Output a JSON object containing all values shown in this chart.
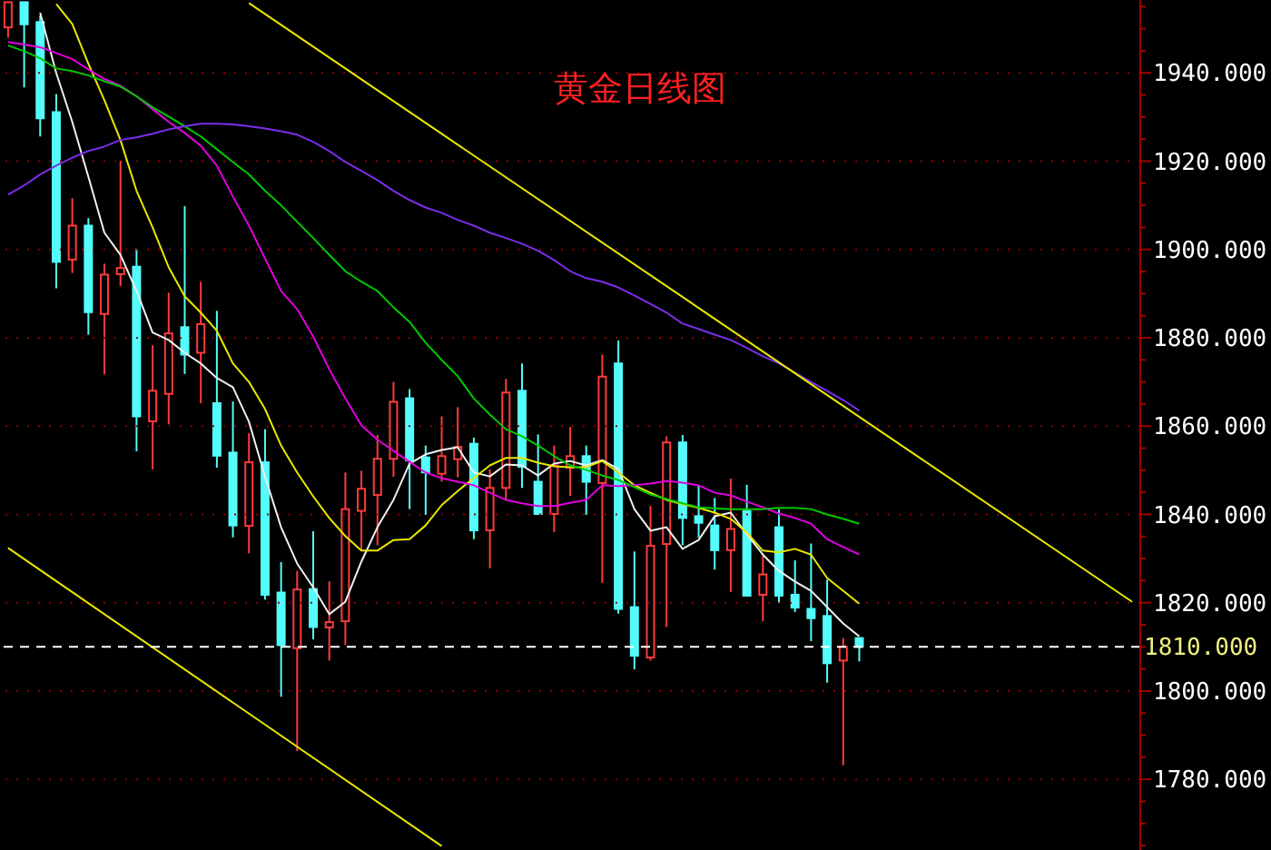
{
  "chart_data": {
    "type": "candlestick",
    "title": "黄金日线图",
    "categories": [
      null,
      null,
      null,
      null,
      null,
      null,
      null,
      null,
      null,
      null,
      null,
      null,
      null,
      null,
      null,
      null,
      null,
      null,
      null,
      null,
      null,
      null,
      null,
      null,
      null,
      null,
      null,
      null,
      null,
      null,
      null,
      null,
      null,
      null,
      null,
      null,
      null,
      null,
      null,
      null,
      null,
      null,
      null,
      null,
      null,
      null,
      null,
      null,
      null,
      null,
      null,
      null,
      null,
      null,
      null,
      null,
      null,
      null,
      null,
      null,
      null,
      null,
      null,
      null,
      null,
      null,
      null,
      null,
      null,
      null,
      null
    ],
    "series": [
      {
        "ohlc": [
          [
            1950.3,
            1956.0,
            1948.0,
            1956.0
          ],
          [
            1956.0,
            1956.0,
            1936.7,
            1951.0
          ],
          [
            1951.5,
            1953.0,
            1925.6,
            1929.7
          ],
          [
            1931.1,
            1935.2,
            1891.2,
            1897.2
          ],
          [
            1897.7,
            1911.6,
            1894.7,
            1905.4
          ],
          [
            1905.4,
            1907.1,
            1880.7,
            1885.8
          ],
          [
            1885.4,
            1896.8,
            1871.7,
            1894.3
          ],
          [
            1894.4,
            1920.1,
            1891.7,
            1895.8
          ],
          [
            1896.1,
            1900.2,
            1854.3,
            1862.2
          ],
          [
            1861.1,
            1878.3,
            1850.2,
            1868.0
          ],
          [
            1867.3,
            1890.2,
            1860.4,
            1881.0
          ],
          [
            1882.4,
            1909.8,
            1871.8,
            1876.2
          ],
          [
            1876.6,
            1892.7,
            1865.2,
            1883.1
          ],
          [
            1865.2,
            1886.1,
            1850.6,
            1853.3
          ],
          [
            1854.0,
            1865.6,
            1834.8,
            1837.5
          ],
          [
            1837.4,
            1858.4,
            1831.2,
            1851.8
          ],
          [
            1851.8,
            1859.3,
            1820.7,
            1821.8
          ],
          [
            1822.3,
            1829.2,
            1798.7,
            1810.4
          ],
          [
            1809.7,
            1827.2,
            1786.4,
            1823.0
          ],
          [
            1823.1,
            1836.2,
            1811.7,
            1814.5
          ],
          [
            1814.4,
            1824.8,
            1806.9,
            1815.6
          ],
          [
            1815.8,
            1849.5,
            1810.4,
            1841.2
          ],
          [
            1840.8,
            1849.9,
            1831.9,
            1845.8
          ],
          [
            1844.4,
            1858.0,
            1833.0,
            1852.6
          ],
          [
            1852.6,
            1870.0,
            1848.5,
            1865.5
          ],
          [
            1866.3,
            1868.4,
            1841.2,
            1852.2
          ],
          [
            1852.9,
            1855.6,
            1839.9,
            1849.5
          ],
          [
            1849.2,
            1862.2,
            1847.4,
            1853.2
          ],
          [
            1852.5,
            1864.3,
            1848.4,
            1855.3
          ],
          [
            1856.0,
            1857.4,
            1834.4,
            1836.4
          ],
          [
            1836.4,
            1850.2,
            1827.8,
            1846.0
          ],
          [
            1846.0,
            1870.7,
            1843.3,
            1867.6
          ],
          [
            1868.0,
            1874.2,
            1846.0,
            1850.8
          ],
          [
            1847.4,
            1858.1,
            1840.1,
            1840.1
          ],
          [
            1840.1,
            1855.6,
            1836.0,
            1851.1
          ],
          [
            1850.6,
            1859.8,
            1844.2,
            1853.2
          ],
          [
            1853.2,
            1855.6,
            1839.9,
            1847.4
          ],
          [
            1847.1,
            1876.2,
            1824.5,
            1871.2
          ],
          [
            1874.2,
            1879.4,
            1817.5,
            1818.6
          ],
          [
            1819.0,
            1831.6,
            1804.9,
            1808.0
          ],
          [
            1807.6,
            1841.9,
            1806.9,
            1832.9
          ],
          [
            1833.3,
            1857.7,
            1814.5,
            1856.3
          ],
          [
            1856.3,
            1858.0,
            1833.0,
            1839.2
          ],
          [
            1839.6,
            1846.5,
            1834.7,
            1838.1
          ],
          [
            1837.5,
            1843.7,
            1827.5,
            1831.9
          ],
          [
            1831.9,
            1848.1,
            1822.4,
            1836.7
          ],
          [
            1840.8,
            1846.7,
            1821.6,
            1821.6
          ],
          [
            1821.8,
            1830.9,
            1815.8,
            1826.4
          ],
          [
            1837.1,
            1841.2,
            1820.0,
            1821.6
          ],
          [
            1821.8,
            1829.6,
            1817.9,
            1818.9
          ],
          [
            1818.6,
            1833.4,
            1811.3,
            1816.5
          ],
          [
            1817.0,
            1825.2,
            1801.9,
            1806.3
          ],
          [
            1806.9,
            1812.0,
            1783.2,
            1810.0
          ],
          [
            1812.0,
            1812.0,
            1806.7,
            1810.0
          ],
          null,
          null,
          null,
          null,
          null,
          null,
          null,
          null,
          null,
          null,
          null,
          null,
          null,
          null,
          null,
          null,
          null
        ],
        "colors": [
          "#ff3b3b",
          "#54fcfc",
          "#54fcfc",
          "#54fcfc",
          "#ff3b3b",
          "#54fcfc",
          "#ff3b3b",
          "#ff3b3b",
          "#54fcfc",
          "#ff3b3b",
          "#ff3b3b",
          "#54fcfc",
          "#ff3b3b",
          "#54fcfc",
          "#54fcfc",
          "#ff3b3b",
          "#54fcfc",
          "#54fcfc",
          "#ff3b3b",
          "#54fcfc",
          "#ff3b3b",
          "#ff3b3b",
          "#ff3b3b",
          "#ff3b3b",
          "#ff3b3b",
          "#54fcfc",
          "#54fcfc",
          "#ff3b3b",
          "#ff3b3b",
          "#54fcfc",
          "#ff3b3b",
          "#ff3b3b",
          "#54fcfc",
          "#54fcfc",
          "#ff3b3b",
          "#ff3b3b",
          "#54fcfc",
          "#ff3b3b",
          "#54fcfc",
          "#54fcfc",
          "#ff3b3b",
          "#ff3b3b",
          "#54fcfc",
          "#54fcfc",
          "#54fcfc",
          "#ff3b3b",
          "#54fcfc",
          "#ff3b3b",
          "#54fcfc",
          "#54fcfc",
          "#54fcfc",
          "#54fcfc",
          "#ff3b3b",
          "#54fcfc",
          null,
          null,
          null,
          null,
          null,
          null,
          null,
          null,
          null,
          null,
          null,
          null,
          null,
          null,
          null,
          null,
          null
        ]
      },
      {
        "type": "line",
        "color": "#f0f0f0",
        "values": [
          null,
          null,
          1953.6,
          1940.0,
          1928.9,
          1916.5,
          1903.8,
          1898.8,
          1890.6,
          1881.2,
          1879.5,
          1876.6,
          1874.2,
          1870.9,
          1868.8,
          1861.0,
          1848.6,
          1837.1,
          1828.9,
          1823.5,
          1817.4,
          1820.2,
          1829.3,
          1837.1,
          1843.3,
          1851.5,
          1853.6,
          1854.6,
          1855.2,
          1849.5,
          1848.6,
          1851.3,
          1851.1,
          1848.8,
          1851.5,
          1852.1,
          1851.1,
          1852.3,
          1850.3,
          1841.2,
          1836.3,
          1837.1,
          1832.2,
          1834.2,
          1839.6,
          1840.4,
          1835.5,
          1830.9,
          1827.2,
          1824.8,
          1822.7,
          1819.0,
          1815.3,
          1812.4,
          null,
          null,
          null,
          null,
          null,
          null,
          null,
          null,
          null,
          null,
          null,
          null,
          null,
          null,
          null,
          null,
          null
        ]
      },
      {
        "type": "line",
        "color": "#e8e800",
        "values": [
          null,
          null,
          null,
          1955.6,
          1951.1,
          1942.1,
          1933.8,
          1924.8,
          1913.3,
          1905.0,
          1896.0,
          1889.4,
          1885.7,
          1881.6,
          1874.2,
          1870.0,
          1863.9,
          1855.6,
          1849.5,
          1844.1,
          1839.2,
          1835.1,
          1831.8,
          1831.8,
          1834.2,
          1834.4,
          1837.5,
          1842.1,
          1845.3,
          1848.2,
          1851.1,
          1852.8,
          1852.8,
          1851.7,
          1850.9,
          1850.7,
          1850.7,
          1852.1,
          1849.5,
          1846.6,
          1844.9,
          1843.3,
          1842.3,
          1841.5,
          1840.4,
          1839.0,
          1835.9,
          1831.8,
          1831.4,
          1832.2,
          1830.9,
          1825.6,
          1822.7,
          1819.8,
          null,
          null,
          null,
          null,
          null,
          null,
          null,
          null,
          null,
          null,
          null,
          null,
          null,
          null,
          null,
          null,
          null
        ]
      },
      {
        "type": "line",
        "color": "#e000e0",
        "values": [
          1947.0,
          1946.4,
          1945.8,
          1944.5,
          1943.1,
          1940.8,
          1938.6,
          1937.1,
          1934.7,
          1931.8,
          1928.9,
          1926.4,
          1923.5,
          1919.0,
          1912.0,
          1905.4,
          1898.0,
          1890.6,
          1886.5,
          1880.3,
          1872.9,
          1866.3,
          1860.2,
          1856.9,
          1854.4,
          1851.9,
          1849.5,
          1848.2,
          1847.4,
          1846.6,
          1844.9,
          1843.3,
          1842.5,
          1841.9,
          1841.9,
          1842.6,
          1843.3,
          1846.6,
          1846.4,
          1846.6,
          1847.0,
          1847.6,
          1847.2,
          1846.6,
          1844.9,
          1844.3,
          1842.9,
          1841.6,
          1840.2,
          1839.2,
          1837.9,
          1834.4,
          1832.6,
          1830.9,
          null,
          null,
          null,
          null,
          null,
          null,
          null,
          null,
          null,
          null,
          null,
          null,
          null,
          null,
          null,
          null,
          null
        ]
      },
      {
        "type": "line",
        "color": "#00c800",
        "values": [
          1946.2,
          1944.9,
          1943.3,
          1941.0,
          1940.4,
          1939.4,
          1938.1,
          1936.9,
          1934.7,
          1932.2,
          1930.1,
          1927.9,
          1925.6,
          1922.7,
          1919.8,
          1917.0,
          1913.3,
          1910.0,
          1906.3,
          1902.6,
          1898.8,
          1895.1,
          1892.7,
          1890.6,
          1886.9,
          1883.6,
          1878.9,
          1875.0,
          1871.3,
          1866.3,
          1862.6,
          1859.3,
          1857.7,
          1855.6,
          1853.2,
          1851.1,
          1850.1,
          1848.8,
          1847.8,
          1846.2,
          1844.5,
          1843.5,
          1842.5,
          1841.6,
          1841.4,
          1841.2,
          1841.2,
          1841.2,
          1841.5,
          1841.5,
          1841.2,
          1840.0,
          1839.0,
          1837.9,
          null,
          null,
          null,
          null,
          null,
          null,
          null,
          null,
          null,
          null,
          null,
          null,
          null,
          null,
          null,
          null,
          null
        ]
      },
      {
        "type": "line",
        "color": "#7a2ee8",
        "values": [
          1912.4,
          1914.5,
          1917.0,
          1919.0,
          1920.8,
          1922.3,
          1923.3,
          1924.8,
          1925.4,
          1926.2,
          1927.2,
          1927.9,
          1928.5,
          1928.5,
          1928.3,
          1927.9,
          1927.4,
          1926.8,
          1926.0,
          1924.4,
          1922.3,
          1919.8,
          1917.8,
          1915.7,
          1913.3,
          1911.2,
          1909.5,
          1908.3,
          1906.7,
          1905.4,
          1903.8,
          1902.6,
          1901.3,
          1899.7,
          1897.6,
          1895.1,
          1893.5,
          1892.7,
          1891.4,
          1889.6,
          1887.7,
          1885.7,
          1883.2,
          1882.0,
          1880.7,
          1879.5,
          1877.7,
          1875.8,
          1874.2,
          1872.1,
          1870.0,
          1868.0,
          1865.9,
          1863.5,
          null,
          null,
          null,
          null,
          null,
          null,
          null,
          null,
          null,
          null,
          null,
          null,
          null,
          null,
          null,
          null,
          null
        ]
      },
      {
        "type": "line",
        "color": "#e8e800",
        "values": [
          null,
          null,
          null,
          null,
          null,
          null,
          null,
          null,
          null,
          null,
          null,
          null,
          null,
          null,
          null,
          1955.8,
          null,
          null,
          null,
          null,
          null,
          null,
          null,
          null,
          null,
          null,
          null,
          null,
          null,
          null,
          null,
          null,
          null,
          null,
          null,
          null,
          null,
          null,
          null,
          null,
          null,
          null,
          null,
          null,
          null,
          null,
          null,
          null,
          null,
          null,
          null,
          null,
          null,
          null,
          null,
          null,
          null,
          null,
          null,
          null,
          null,
          null,
          null,
          null,
          null,
          null,
          null,
          null,
          null,
          null,
          1820.2
        ]
      },
      {
        "type": "line",
        "color": "#e8e800",
        "values": [
          1832.4,
          null,
          null,
          null,
          null,
          null,
          null,
          null,
          null,
          null,
          null,
          null,
          null,
          null,
          null,
          null,
          null,
          null,
          null,
          null,
          null,
          null,
          null,
          null,
          null,
          null,
          null,
          1764.9,
          null,
          null,
          null,
          null,
          null,
          null,
          null,
          null,
          null,
          null,
          null,
          null,
          null,
          null,
          null,
          null,
          null,
          null,
          null,
          null,
          null,
          null,
          null,
          null,
          null,
          null,
          null,
          null,
          null,
          null,
          null,
          null,
          null,
          null,
          null,
          null,
          null,
          null,
          null,
          null,
          null,
          null,
          null
        ]
      }
    ],
    "ylim": [
      1764,
      1956.5
    ],
    "yticks": [
      {
        "value": 1765,
        "label": null
      },
      {
        "value": 1770,
        "label": null
      },
      {
        "value": 1775,
        "label": null
      },
      {
        "value": 1780,
        "label": "1780.000"
      },
      {
        "value": 1785,
        "label": null
      },
      {
        "value": 1790,
        "label": null
      },
      {
        "value": 1795,
        "label": null
      },
      {
        "value": 1800,
        "label": "1800.000"
      },
      {
        "value": 1805,
        "label": null
      },
      {
        "value": 1810,
        "label": null
      },
      {
        "value": 1815,
        "label": null
      },
      {
        "value": 1820,
        "label": "1820.000"
      },
      {
        "value": 1825,
        "label": null
      },
      {
        "value": 1830,
        "label": null
      },
      {
        "value": 1835,
        "label": null
      },
      {
        "value": 1840,
        "label": "1840.000"
      },
      {
        "value": 1845,
        "label": null
      },
      {
        "value": 1850,
        "label": null
      },
      {
        "value": 1855,
        "label": null
      },
      {
        "value": 1860,
        "label": "1860.000"
      },
      {
        "value": 1865,
        "label": null
      },
      {
        "value": 1870,
        "label": null
      },
      {
        "value": 1875,
        "label": null
      },
      {
        "value": 1880,
        "label": "1880.000"
      },
      {
        "value": 1885,
        "label": null
      },
      {
        "value": 1890,
        "label": null
      },
      {
        "value": 1895,
        "label": null
      },
      {
        "value": 1900,
        "label": "1900.000"
      },
      {
        "value": 1905,
        "label": null
      },
      {
        "value": 1910,
        "label": null
      },
      {
        "value": 1915,
        "label": null
      },
      {
        "value": 1920,
        "label": "1920.000"
      },
      {
        "value": 1925,
        "label": null
      },
      {
        "value": 1930,
        "label": null
      },
      {
        "value": 1935,
        "label": null
      },
      {
        "value": 1940,
        "label": "1940.000"
      },
      {
        "value": 1945,
        "label": null
      },
      {
        "value": 1950,
        "label": null
      },
      {
        "value": 1955,
        "label": null
      }
    ],
    "ref_lines": [
      {
        "axis": "y",
        "value": 1810,
        "label": "1810.000",
        "color": "#ffffff",
        "line_style": "dashed"
      }
    ],
    "grid": "y",
    "legend": false,
    "marker": "none",
    "line_style": "solid",
    "tick_labels": "y"
  }
}
